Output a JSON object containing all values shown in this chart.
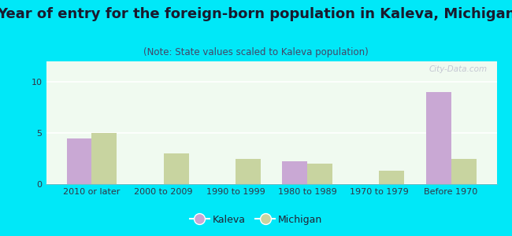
{
  "title": "Year of entry for the foreign-born population in Kaleva, Michigan",
  "subtitle": "(Note: State values scaled to Kaleva population)",
  "categories": [
    "2010 or later",
    "2000 to 2009",
    "1990 to 1999",
    "1980 to 1989",
    "1970 to 1979",
    "Before 1970"
  ],
  "kaleva": [
    4.5,
    0,
    0,
    2.2,
    0,
    9.0
  ],
  "michigan": [
    5.0,
    3.0,
    2.5,
    2.0,
    1.3,
    2.5
  ],
  "kaleva_color": "#c9a8d4",
  "michigan_color": "#c8d4a0",
  "background_outer": "#00e8f8",
  "background_inner_top": "#d8f0e0",
  "background_inner_bottom": "#f0faf0",
  "ylim": [
    0,
    12
  ],
  "yticks": [
    0,
    5,
    10
  ],
  "bar_width": 0.35,
  "legend_kaleva": "Kaleva",
  "legend_michigan": "Michigan",
  "title_fontsize": 13,
  "subtitle_fontsize": 8.5,
  "title_color": "#1a1a2e",
  "subtitle_color": "#444466",
  "watermark": "City-Data.com"
}
